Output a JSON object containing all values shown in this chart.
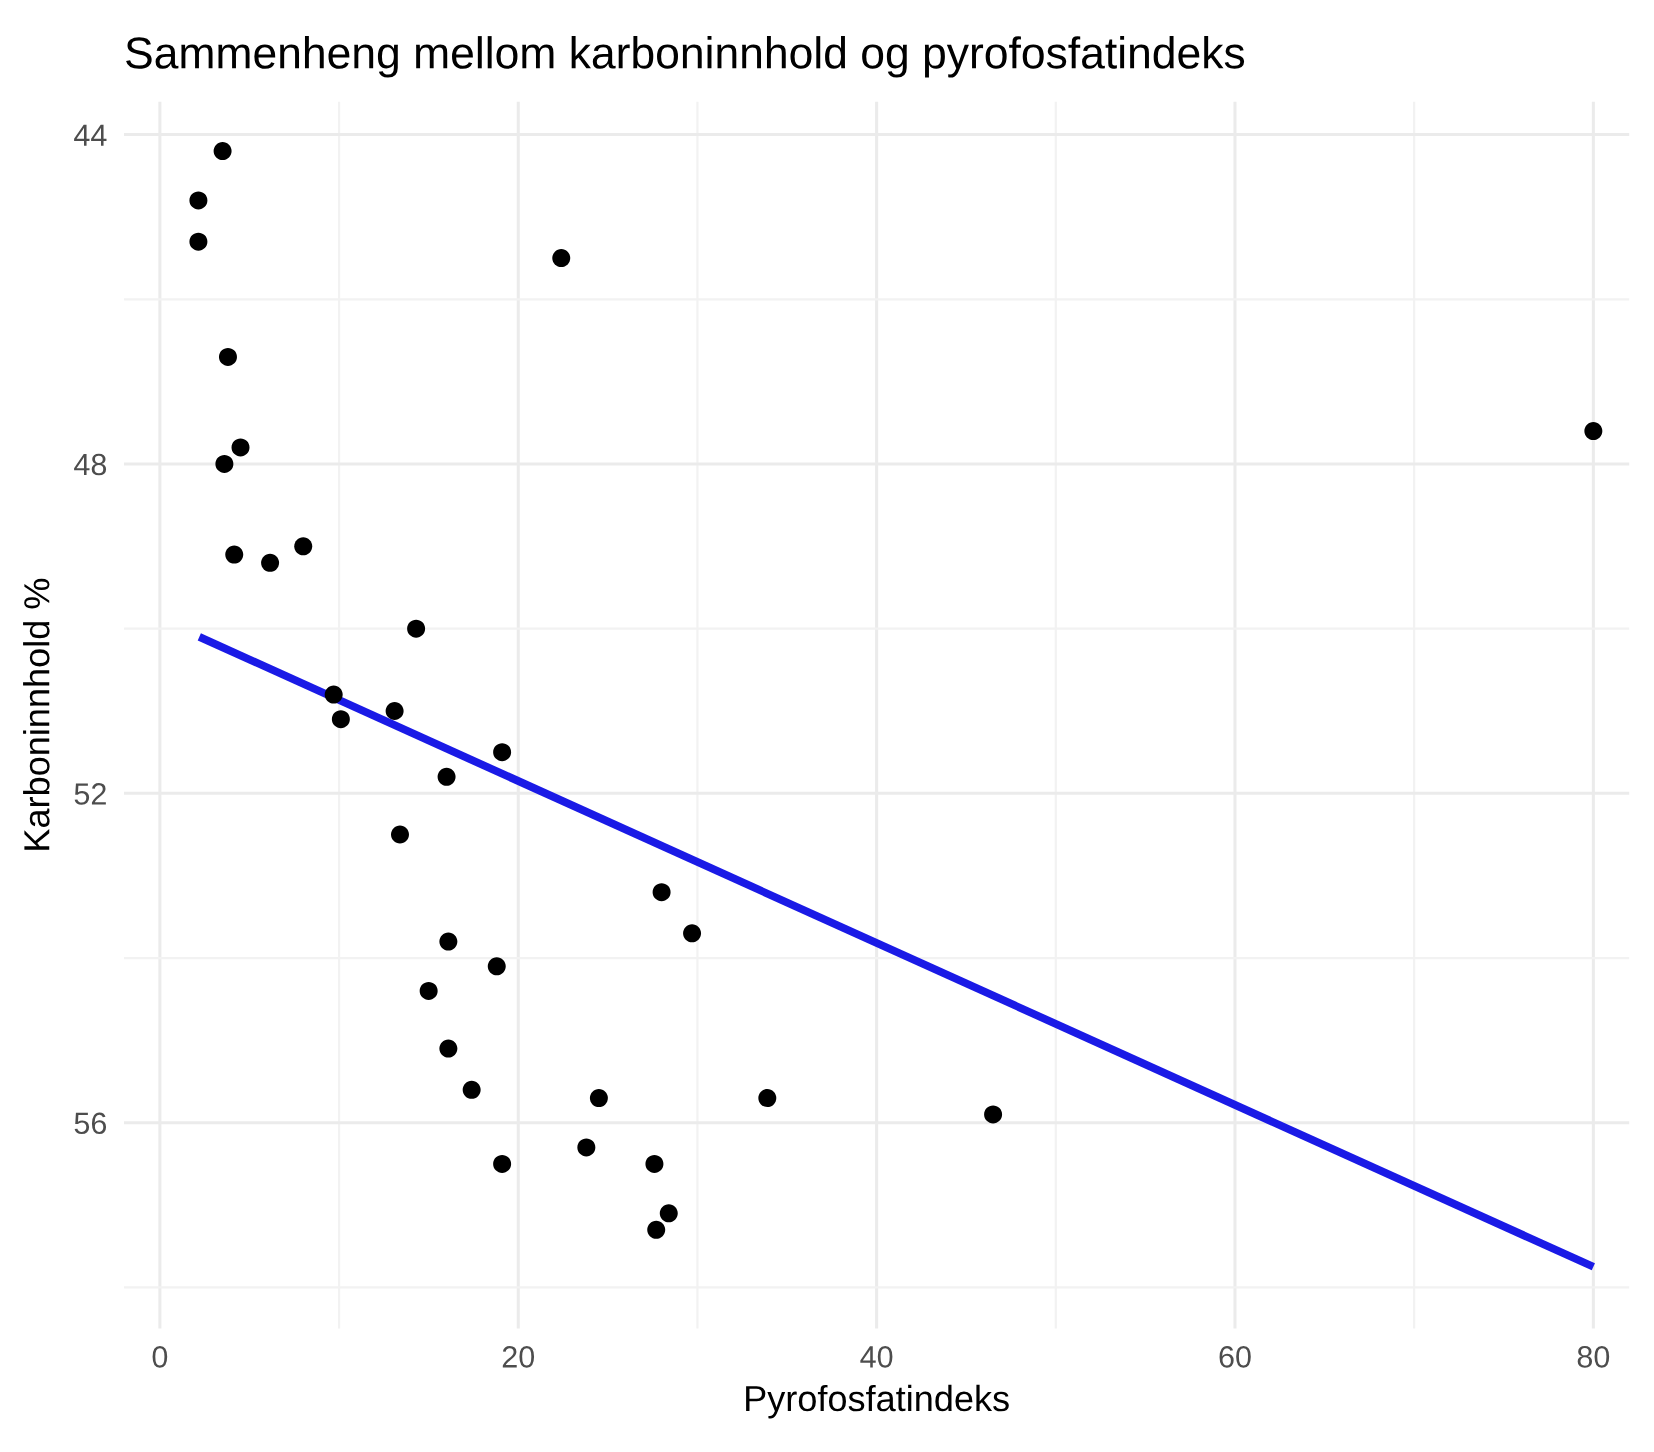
{
  "chart_data": {
    "type": "scatter",
    "title": "Sammenheng mellom karboninnhold og pyrofosfatindeks",
    "xlabel": "Pyrofosfatindeks",
    "ylabel": "Karboninnhold %",
    "series": [
      {
        "color": "#000000",
        "marker": "circle",
        "x": [
          3.5,
          2.15,
          2.15,
          22.4,
          3.8,
          4.5,
          3.6,
          4.15,
          6.15,
          8.0,
          14.3,
          9.7,
          10.1,
          13.1,
          19.1,
          16.0,
          13.4,
          28.0,
          29.7,
          16.1,
          18.8,
          15.0,
          16.1,
          17.4,
          24.5,
          33.9,
          23.8,
          19.1,
          27.6,
          28.4,
          27.7,
          46.5,
          80.0
        ],
        "values": [
          44.2,
          44.8,
          45.3,
          45.5,
          46.7,
          47.8,
          48.0,
          49.1,
          49.2,
          49.0,
          50.0,
          50.8,
          51.1,
          51.0,
          51.5,
          51.8,
          52.5,
          53.2,
          53.7,
          53.8,
          54.1,
          54.4,
          55.1,
          55.6,
          55.7,
          55.7,
          56.3,
          56.5,
          56.5,
          57.1,
          57.3,
          55.9,
          47.6
        ]
      },
      {
        "type": "line",
        "color": "#1a1ae6",
        "x": [
          2.2,
          80.0
        ],
        "values": [
          50.1,
          57.75
        ]
      }
    ],
    "xlim": [
      -2,
      82
    ],
    "ylim": [
      58.5,
      43.6
    ],
    "xticks": [
      0,
      20,
      40,
      60,
      80
    ],
    "yticks": [
      44,
      48,
      52,
      56
    ],
    "grid": true
  }
}
